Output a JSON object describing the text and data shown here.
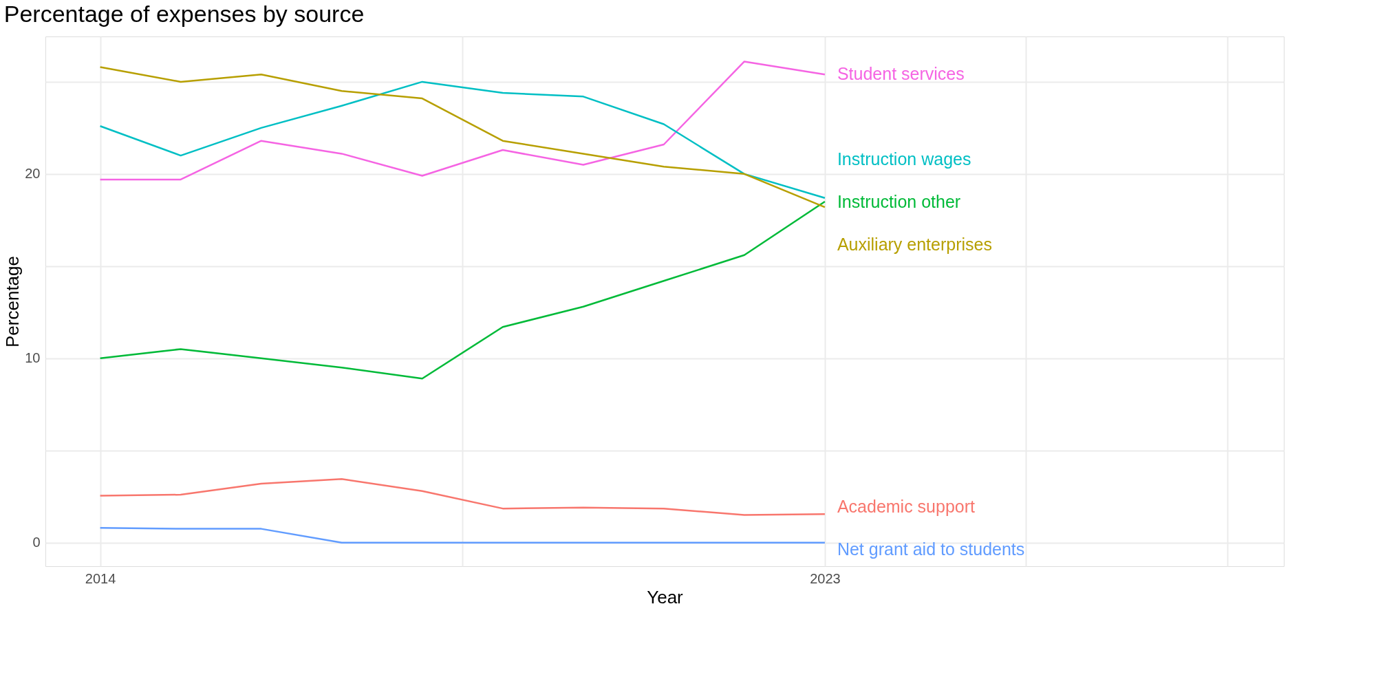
{
  "chart_data": {
    "type": "line",
    "title": "Percentage of expenses by source",
    "xlabel": "Year",
    "ylabel": "Percentage",
    "x": [
      2014,
      2015,
      2016,
      2017,
      2018,
      2019,
      2020,
      2021,
      2022,
      2023
    ],
    "series": [
      {
        "name": "Student services",
        "color": "#F564E3",
        "values": [
          19.7,
          19.7,
          21.8,
          21.1,
          19.9,
          21.3,
          20.5,
          21.6,
          26.1,
          25.4
        ]
      },
      {
        "name": "Instruction wages",
        "color": "#00BFC4",
        "values": [
          22.6,
          21.0,
          22.5,
          23.7,
          25.0,
          24.4,
          24.2,
          22.7,
          20.0,
          18.7
        ]
      },
      {
        "name": "Instruction other",
        "color": "#00BA38",
        "values": [
          10.0,
          10.5,
          10.0,
          9.5,
          8.9,
          11.7,
          12.8,
          14.2,
          15.6,
          18.5
        ]
      },
      {
        "name": "Auxiliary enterprises",
        "color": "#B79F00",
        "values": [
          25.8,
          25.0,
          25.4,
          24.5,
          24.1,
          21.8,
          21.1,
          20.4,
          20.0,
          18.2
        ]
      },
      {
        "name": "Academic support",
        "color": "#F8766D",
        "values": [
          2.55,
          2.6,
          3.2,
          3.45,
          2.8,
          1.85,
          1.9,
          1.85,
          1.5,
          1.55
        ]
      },
      {
        "name": "Net grant aid to students",
        "color": "#619CFF",
        "values": [
          0.8,
          0.75,
          0.75,
          0,
          0,
          0,
          0,
          0,
          0,
          0
        ]
      }
    ],
    "xlim": [
      2013.32,
      2028.7
    ],
    "xticks": [
      2014,
      {
        "value": 2018.5,
        "label": null
      },
      2023,
      {
        "value": 2025.5,
        "label": null
      },
      {
        "value": 2028,
        "label": null
      }
    ],
    "ylim": [
      -1.28,
      27.46
    ],
    "yticks": [
      0,
      {
        "value": 5,
        "label": null
      },
      10,
      {
        "value": 15,
        "label": null
      },
      20,
      {
        "value": 25,
        "label": null
      }
    ],
    "grid": true,
    "legend": false
  }
}
